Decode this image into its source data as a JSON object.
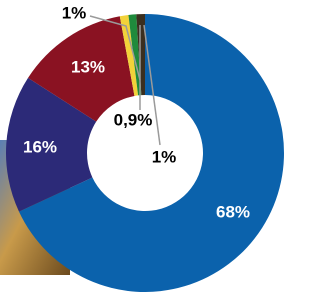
{
  "chart_data": {
    "type": "donut",
    "categories": [
      null,
      null,
      null,
      null,
      null,
      null
    ],
    "values": [
      68,
      16,
      13,
      1,
      0.9,
      1
    ],
    "value_labels": [
      "68%",
      "16%",
      "13%",
      "1%",
      "0,9%",
      "1%"
    ],
    "colors": [
      "#0b62ac",
      "#2c2a78",
      "#8a1222",
      "#f2d23a",
      "#1f8a3c",
      "#3b2f1f"
    ]
  }
}
